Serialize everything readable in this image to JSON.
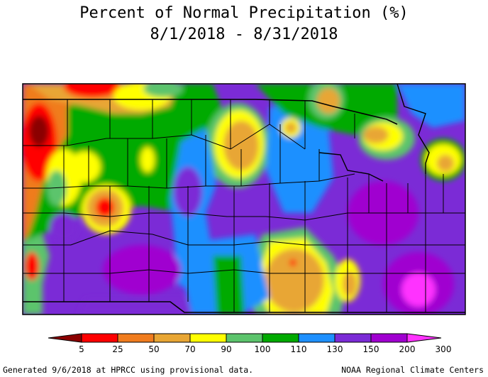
{
  "title": {
    "line1": "Percent of Normal Precipitation (%)",
    "line2": "8/1/2018 - 8/31/2018"
  },
  "legend": {
    "bins": [
      {
        "color": "#8b0000"
      },
      {
        "color": "#ff0000"
      },
      {
        "color": "#f07c1e"
      },
      {
        "color": "#e8a634"
      },
      {
        "color": "#ffff00"
      },
      {
        "color": "#5cc46c"
      },
      {
        "color": "#00aa00"
      },
      {
        "color": "#1e90ff"
      },
      {
        "color": "#7b2bd6"
      },
      {
        "color": "#a000d0"
      },
      {
        "color": "#ff33ff"
      }
    ],
    "labels": [
      "5",
      "25",
      "50",
      "70",
      "90",
      "100",
      "110",
      "130",
      "150",
      "200",
      "300"
    ]
  },
  "footer": {
    "left": "Generated 9/6/2018 at HPRCC using provisional data.",
    "right": "NOAA Regional Climate Centers"
  }
}
